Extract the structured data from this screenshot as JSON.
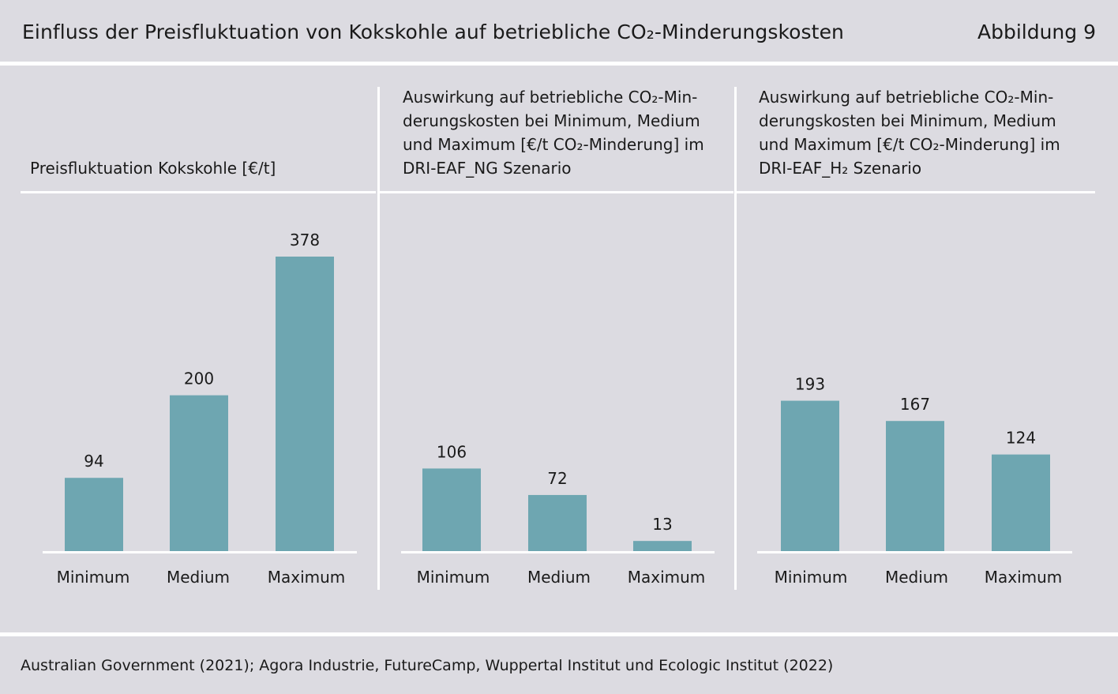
{
  "header": {
    "title": "Einfluss der Preisfluktuation von Kokskohle auf betriebliche CO₂-Minderungskosten",
    "figure_number": "Abbildung 9"
  },
  "source": "Australian Government (2021); Agora Industrie, FutureCamp, Wuppertal Institut und Ecologic Institut (2022)",
  "colors": {
    "bar": "#6ea6b1",
    "background": "#dcdbe1",
    "rule": "#ffffff"
  },
  "chart_data": [
    {
      "type": "bar",
      "title": "Preisfluktuation Kokskohle [€/t]",
      "categories": [
        "Minimum",
        "Medium",
        "Maximum"
      ],
      "values": [
        94,
        200,
        378
      ],
      "value_labels": [
        "94",
        "200",
        "378"
      ]
    },
    {
      "type": "bar",
      "title": "Auswirkung auf betriebliche CO₂-Minderungskosten bei Minimum, Medium und Maximum [€/t CO₂-Minderung] im DRI-EAF_NG Szenario",
      "title_lines": [
        "Auswirkung auf betriebliche CO₂-Min-",
        "derungskosten bei Minimum, Medium",
        "und Maximum [€/t CO₂-Minderung] im",
        "DRI-EAF_NG Szenario"
      ],
      "categories": [
        "Minimum",
        "Medium",
        "Maximum"
      ],
      "values": [
        106,
        72,
        13
      ],
      "value_labels": [
        "106",
        "72",
        "13"
      ]
    },
    {
      "type": "bar",
      "title": "Auswirkung auf betriebliche CO₂-Minderungskosten bei Minimum, Medium und Maximum [€/t CO₂-Minderung] im DRI-EAF_H₂ Szenario",
      "title_lines": [
        "Auswirkung auf betriebliche CO₂-Min-",
        "derungskosten bei Minimum, Medium",
        "und Maximum [€/t CO₂-Minderung] im",
        "DRI-EAF_H₂ Szenario"
      ],
      "categories": [
        "Minimum",
        "Medium",
        "Maximum"
      ],
      "values": [
        193,
        167,
        124
      ],
      "value_labels": [
        "193",
        "167",
        "124"
      ]
    }
  ]
}
